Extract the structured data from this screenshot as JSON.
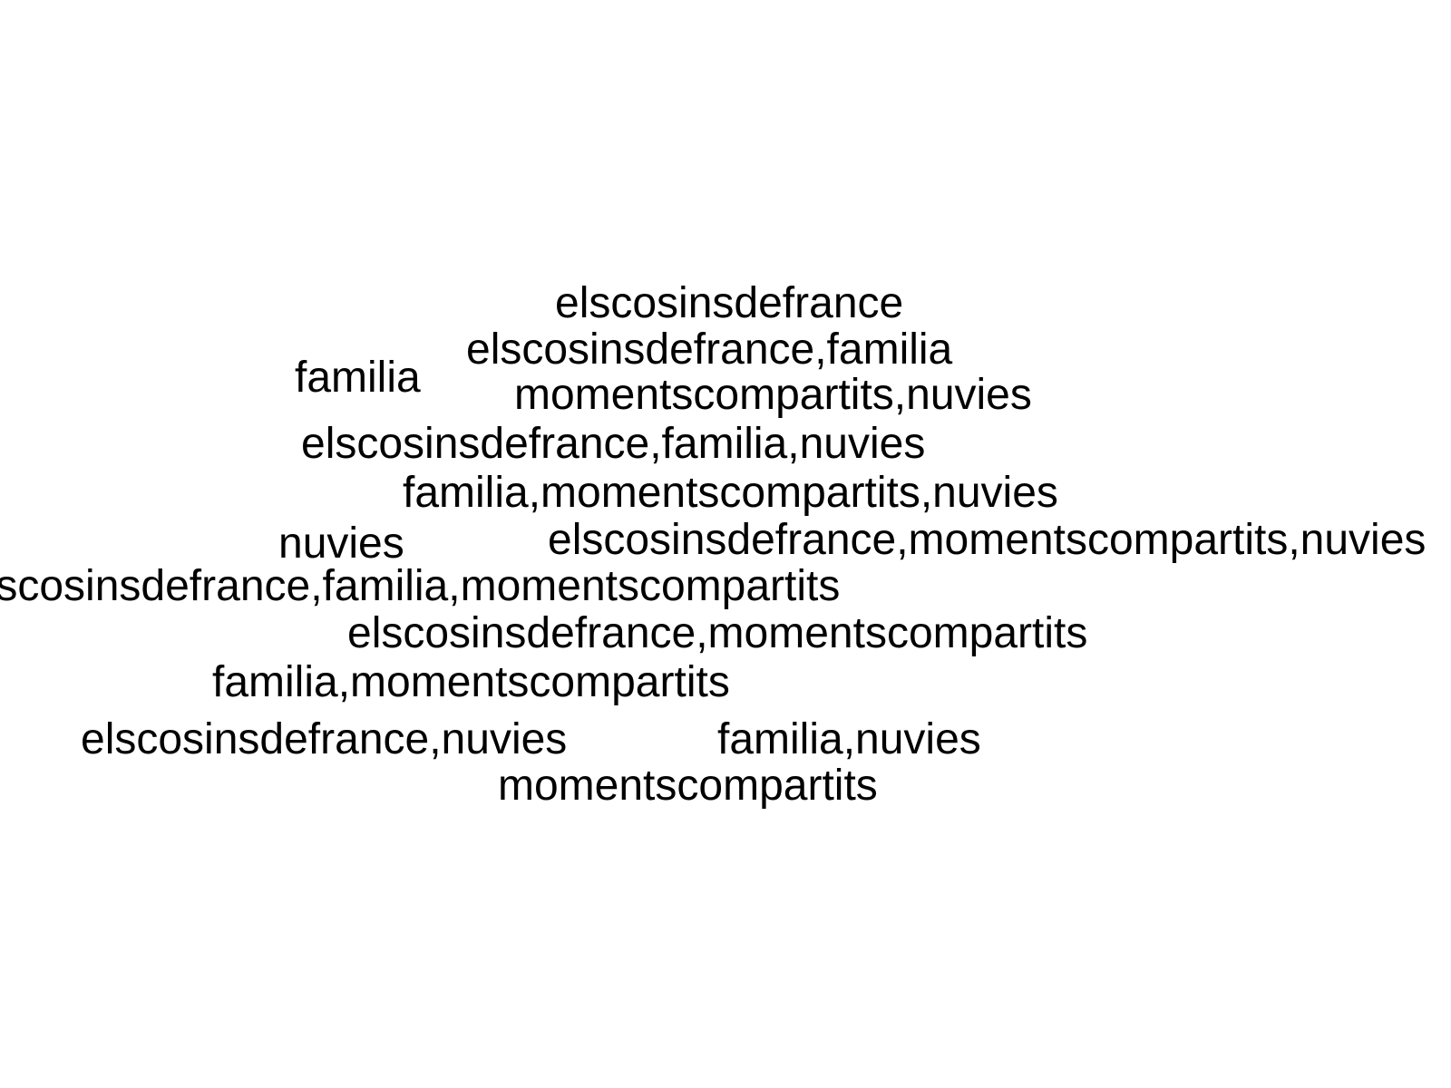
{
  "words": [
    "elscosinsdefrance",
    "elscosinsdefrance,familia",
    "familia",
    "momentscompartits,nuvies",
    "elscosinsdefrance,familia,nuvies",
    "familia,momentscompartits,nuvies",
    "nuvies",
    "elscosinsdefrance,momentscompartits,nuvies",
    "elscosinsdefrance,familia,momentscompartits",
    "elscosinsdefrance,momentscompartits",
    "familia,momentscompartits",
    "elscosinsdefrance,nuvies",
    "familia,nuvies",
    "momentscompartits"
  ],
  "text_color": "#000000",
  "background_color": "#ffffff"
}
